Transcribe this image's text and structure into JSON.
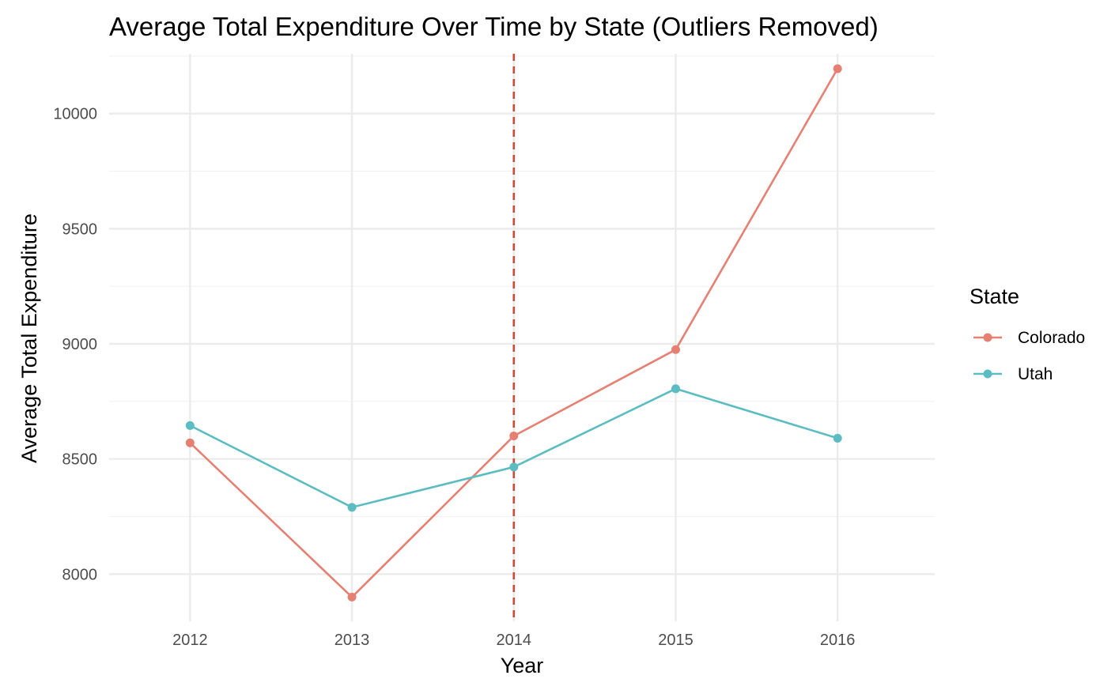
{
  "chart_data": {
    "type": "line",
    "title": "Average Total Expenditure Over Time by State (Outliers Removed)",
    "xlabel": "Year",
    "ylabel": "Average Total Expenditure",
    "x": [
      2012,
      2013,
      2014,
      2015,
      2016
    ],
    "xlim": [
      2011.5,
      2016.6
    ],
    "ylim": [
      7795,
      10260
    ],
    "y_ticks": [
      8000,
      8500,
      9000,
      9500,
      10000
    ],
    "y_minor": [
      8250,
      8750,
      9250,
      9750,
      10250
    ],
    "grid": true,
    "vline": {
      "x": 2014,
      "style": "dashed",
      "color": "#d0493a"
    },
    "legend": {
      "title": "State",
      "position": "right"
    },
    "series": [
      {
        "name": "Colorado",
        "color": "#e58073",
        "values": [
          8570,
          7900,
          8600,
          8975,
          10195
        ]
      },
      {
        "name": "Utah",
        "color": "#5bbdc1",
        "values": [
          8645,
          8290,
          8465,
          8805,
          8590
        ]
      }
    ]
  }
}
